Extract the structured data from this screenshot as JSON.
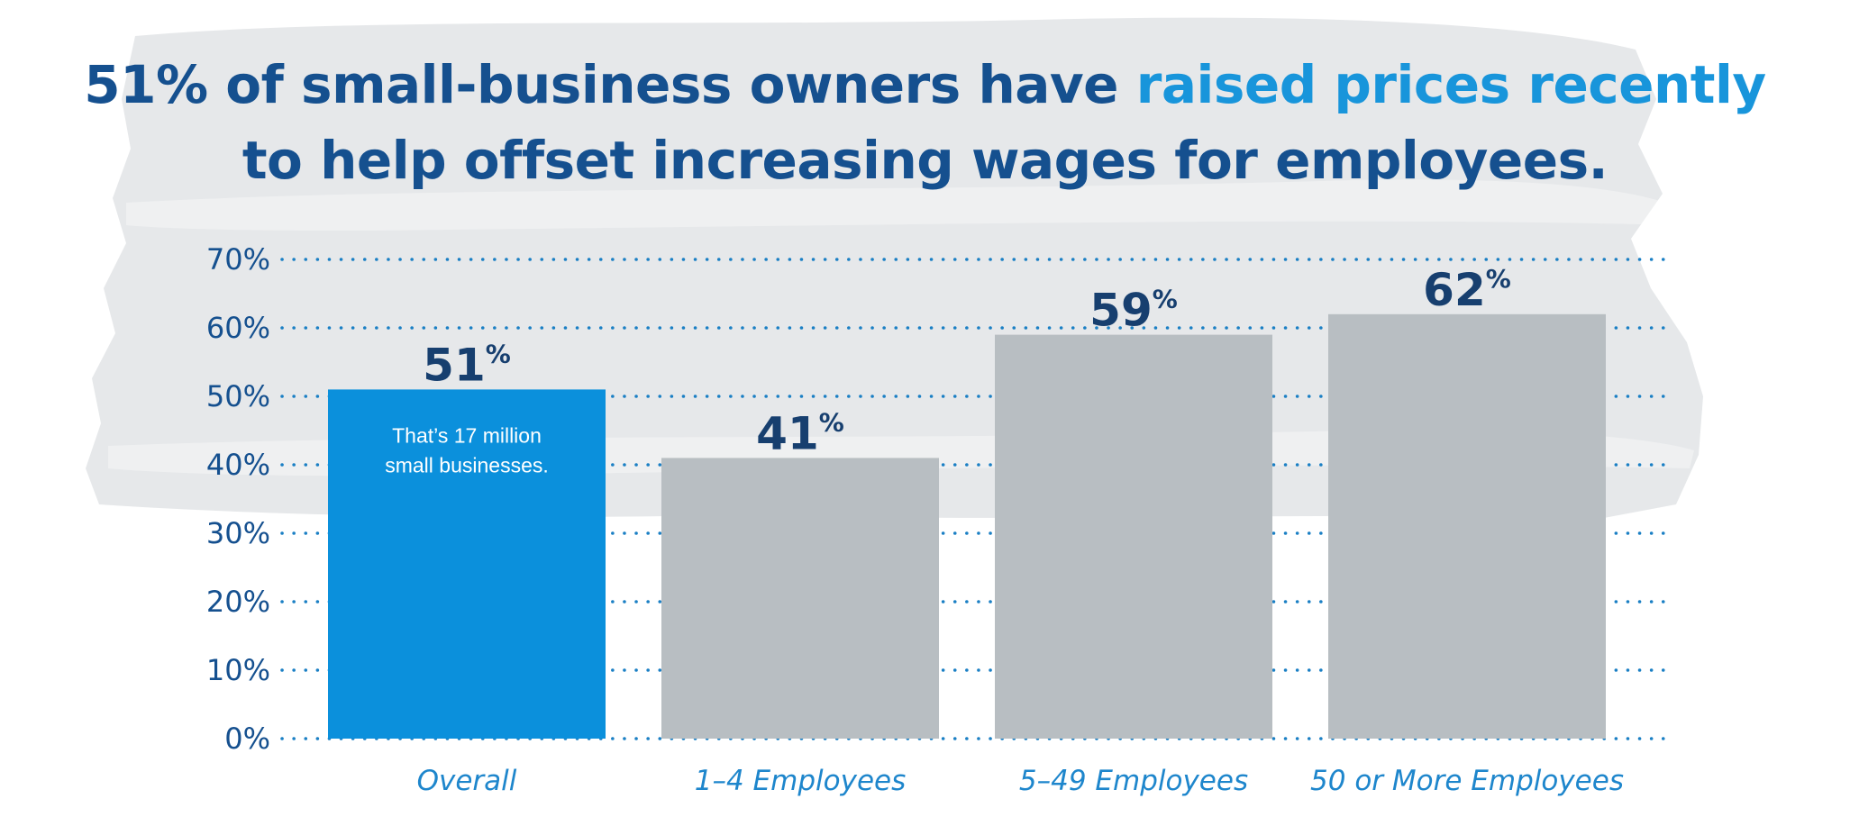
{
  "title": {
    "part1": "51% of small-business owners have ",
    "highlight": "raised prices recently",
    "part2": "to help offset increasing wages for employees."
  },
  "colors": {
    "title": "#15508f",
    "highlight": "#1895db",
    "bar_highlight": "#0b90dc",
    "bar_default": "#b8bec2",
    "value_label": "#173f6f",
    "category_label": "#1e86cc",
    "gridline": "#1a7fc4",
    "brush": "#e6e8ea"
  },
  "chart_data": {
    "type": "bar",
    "categories": [
      "Overall",
      "1–4 Employees",
      "5–49 Employees",
      "50 or More Employees"
    ],
    "values": [
      51,
      41,
      59,
      62
    ],
    "value_labels": [
      "51%",
      "41%",
      "59%",
      "62%"
    ],
    "ylim": [
      0,
      70
    ],
    "yticks": [
      0,
      10,
      20,
      30,
      40,
      50,
      60,
      70
    ],
    "ytick_labels": [
      "0%",
      "10%",
      "20%",
      "30%",
      "40%",
      "50%",
      "60%",
      "70%"
    ],
    "grid": true,
    "grid_style": "dotted",
    "highlighted_category": "Overall",
    "annotation": {
      "category": "Overall",
      "lines": [
        "That’s 17 million",
        "small businesses."
      ]
    }
  }
}
